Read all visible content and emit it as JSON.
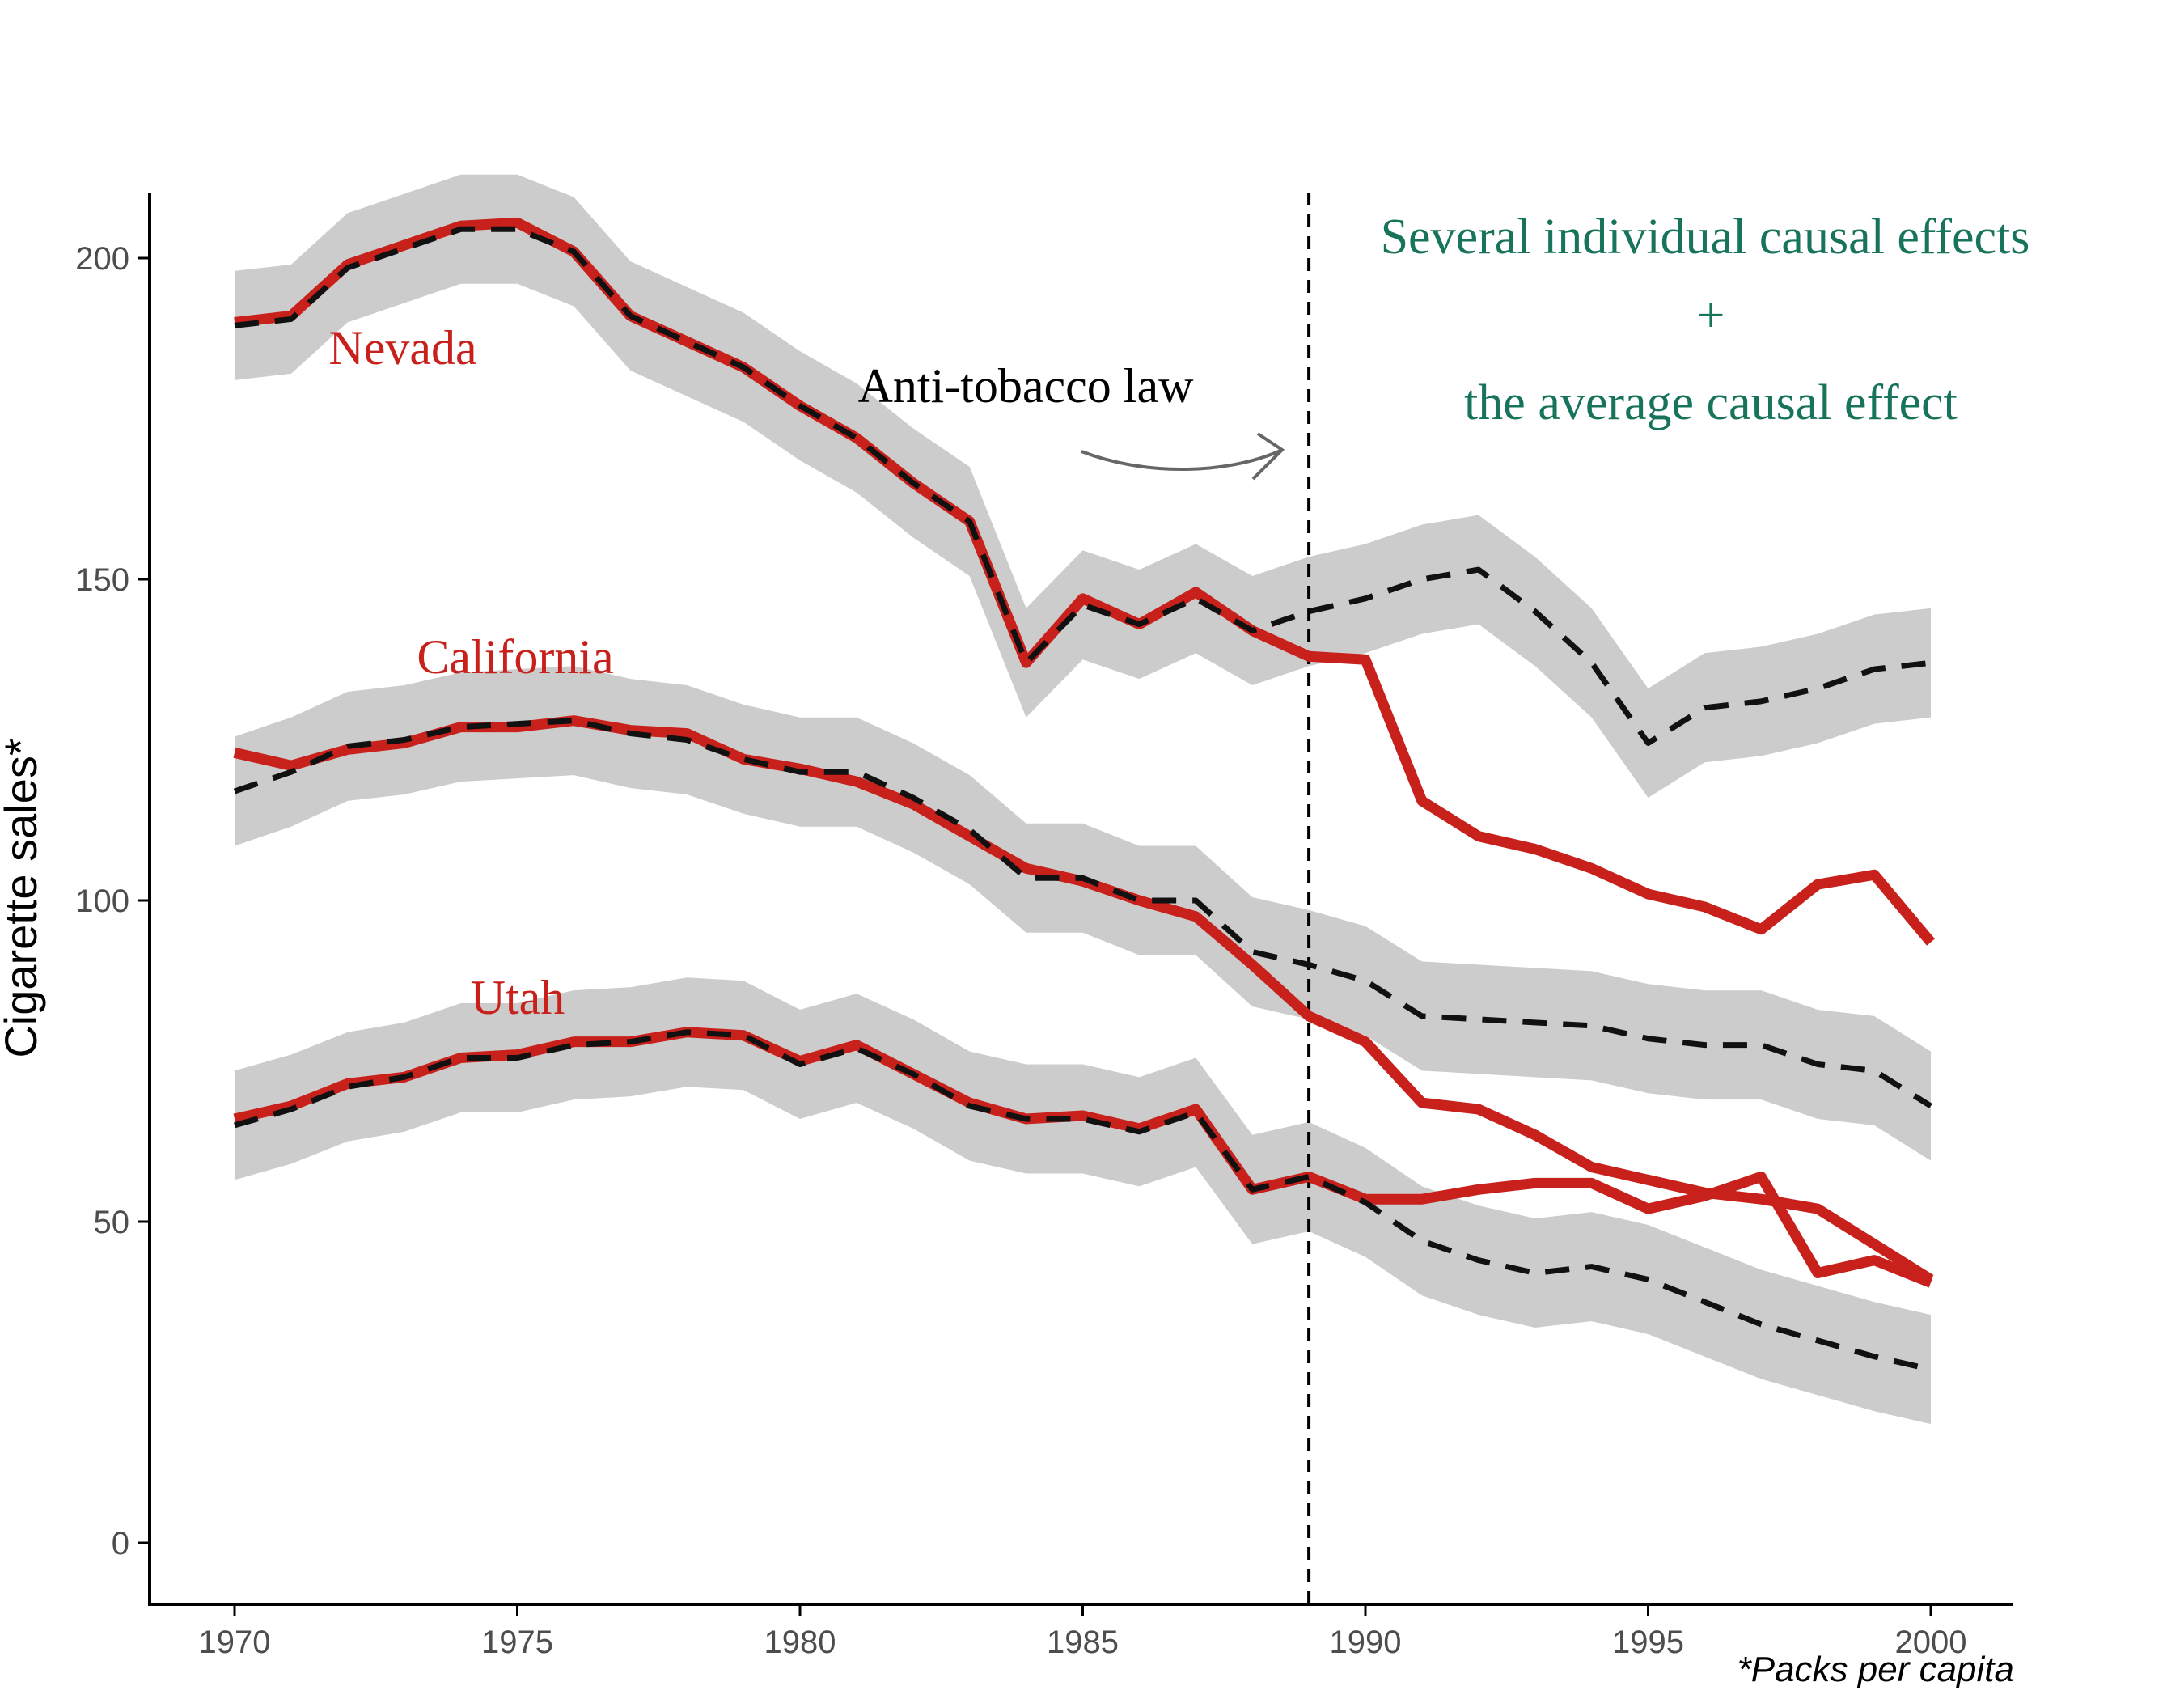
{
  "chart_data": {
    "type": "line",
    "title": "",
    "xlabel": "",
    "ylabel": "Cigarette sales*",
    "caption": "*Packs per capita",
    "xlim": [
      1968.5,
      2001.5
    ],
    "ylim": [
      -10,
      210
    ],
    "xticks": [
      1970,
      1975,
      1980,
      1985,
      1990,
      1995,
      2000
    ],
    "xtick_labels": [
      "1970",
      "1975",
      "1980",
      "1985",
      "1990",
      "1995",
      "2000"
    ],
    "yticks": [
      0,
      50,
      100,
      150,
      200
    ],
    "ytick_labels": [
      "0",
      "50",
      "100",
      "150",
      "200"
    ],
    "grid": false,
    "legend": "none",
    "intervention_year": 1989,
    "colors": {
      "observed": "#c8201b",
      "synthetic": "#111111",
      "band": "#cccccc",
      "annotation_green": "#17735a",
      "arrow": "#666666"
    },
    "annotations": {
      "law": "Anti-tobacco law",
      "effects_line1": "Several individual causal effects",
      "effects_plus": "+",
      "effects_line2": "the average causal effect"
    },
    "x": [
      1970,
      1971,
      1972,
      1973,
      1974,
      1975,
      1976,
      1977,
      1978,
      1979,
      1980,
      1981,
      1982,
      1983,
      1984,
      1985,
      1986,
      1987,
      1988,
      1989,
      1990,
      1991,
      1992,
      1993,
      1994,
      1995,
      1996,
      1997,
      1998,
      1999,
      2000
    ],
    "series": [
      {
        "name": "Nevada",
        "observed": [
          190,
          191,
          199,
          202,
          205,
          205.5,
          201,
          191,
          187,
          183,
          177,
          172,
          165,
          159,
          137,
          147,
          143,
          148,
          142,
          138,
          137.5,
          115.5,
          110,
          108,
          105,
          101,
          99,
          95.5,
          102.5,
          104,
          93.5
        ],
        "synthetic": [
          189.5,
          190.5,
          198.5,
          201.5,
          204.5,
          204.5,
          201,
          191,
          187,
          183,
          177,
          172,
          165,
          159,
          137,
          146,
          143,
          147,
          142,
          145,
          147,
          150,
          151.5,
          145,
          137,
          124.5,
          130,
          131,
          133,
          136,
          137
        ],
        "band_halfwidth": 8.5
      },
      {
        "name": "California",
        "observed": [
          123,
          121,
          123.5,
          124.5,
          127,
          127,
          128,
          126.5,
          126,
          122,
          120.5,
          118.5,
          115,
          110,
          105,
          103,
          100,
          97.5,
          90,
          82,
          78,
          68.5,
          67.5,
          63.5,
          58.5,
          56.5,
          54.5,
          53.5,
          52,
          46.5,
          41
        ],
        "synthetic": [
          117,
          120,
          124,
          125,
          127,
          127.5,
          128,
          126,
          125,
          122,
          120,
          120,
          116,
          111,
          103.5,
          103.5,
          100,
          100,
          92,
          90,
          87.5,
          82,
          81.5,
          81,
          80.5,
          78.5,
          77.5,
          77.5,
          74.5,
          73.5,
          68
        ],
        "band_halfwidth": 8.5
      },
      {
        "name": "Utah",
        "observed": [
          66,
          68,
          71.5,
          72.5,
          75.5,
          76,
          78,
          78,
          79.5,
          79,
          75,
          77.5,
          73,
          68.5,
          66,
          66.5,
          64.5,
          67.5,
          55,
          57,
          53.5,
          53.5,
          55,
          56,
          56,
          52,
          54,
          57,
          42,
          44,
          40.5
        ],
        "synthetic": [
          65,
          67.5,
          71,
          72.5,
          75.5,
          75.5,
          77.5,
          78,
          79.5,
          79,
          74.5,
          77,
          73,
          68,
          66,
          66,
          64,
          67,
          55,
          57,
          53,
          47,
          44,
          42,
          43,
          41,
          37.5,
          34,
          31.5,
          29,
          27
        ],
        "band_halfwidth": 8.5
      }
    ]
  }
}
